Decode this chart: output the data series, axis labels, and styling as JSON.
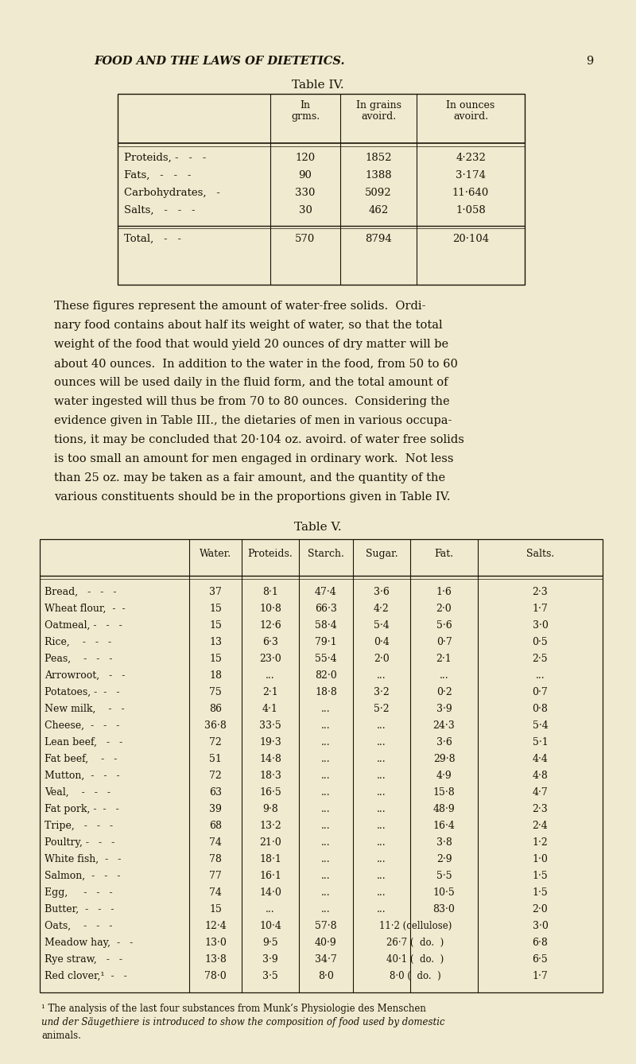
{
  "bg_color": "#f0ead0",
  "text_color": "#1a1408",
  "header_title": "FOOD AND THE LAWS OF DIETETICS.",
  "page_num": "9",
  "table4_title": "Table IV.",
  "table4_headers_line1": [
    "",
    "In",
    "In grains",
    "In ounces"
  ],
  "table4_headers_line2": [
    "",
    "grms.",
    "avoird.",
    "avoird."
  ],
  "table4_rows": [
    [
      "Proteids, -   -   -",
      "120",
      "1852",
      "4·232"
    ],
    [
      "Fats,   -   -   -",
      "90",
      "1388",
      "3·174"
    ],
    [
      "Carbohydrates,   -",
      "330",
      "5092",
      "11·640"
    ],
    [
      "Salts,   -   -   -",
      "30",
      "462",
      "1·058"
    ]
  ],
  "table4_total": [
    "Total,   -   -",
    "570",
    "8794",
    "20·104"
  ],
  "para_lines": [
    "These figures represent the amount of water-free solids.  Ordi-",
    "nary food contains about half its weight of water, so that the total",
    "weight of the food that would yield 20 ounces of dry matter will be",
    "about 40 ounces.  In addition to the water in the food, from 50 to 60",
    "ounces will be used daily in the fluid form, and the total amount of",
    "water ingested will thus be from 70 to 80 ounces.  Considering the",
    "evidence given in Table III., the dietaries of men in various occupa-",
    "tions, it may be concluded that 20·104 oz. avoird. of water free solids",
    "is too small an amount for men engaged in ordinary work.  Not less",
    "than 25 oz. may be taken as a fair amount, and the quantity of the",
    "various constituents should be in the proportions given in Table IV."
  ],
  "table5_title": "Table V.",
  "table5_col_headers": [
    "",
    "Water.",
    "Proteids.",
    "Starch.",
    "Sugar.",
    "Fat.",
    "Salts."
  ],
  "table5_rows": [
    [
      "Bread,   -   -   -",
      "37",
      "8·1",
      "47·4",
      "3·6",
      "1·6",
      "2·3"
    ],
    [
      "Wheat flour,  -  -",
      "15",
      "10·8",
      "66·3",
      "4·2",
      "2·0",
      "1·7"
    ],
    [
      "Oatmeal, -   -   -",
      "15",
      "12·6",
      "58·4",
      "5·4",
      "5·6",
      "3·0"
    ],
    [
      "Rice,    -   -   -",
      "13",
      "6·3",
      "79·1",
      "0·4",
      "0·7",
      "0·5"
    ],
    [
      "Peas,    -   -   -",
      "15",
      "23·0",
      "55·4",
      "2·0",
      "2·1",
      "2·5"
    ],
    [
      "Arrowroot,   -   -",
      "18",
      "...",
      "82·0",
      "...",
      "...",
      "..."
    ],
    [
      "Potatoes, -  -   -",
      "75",
      "2·1",
      "18·8",
      "3·2",
      "0·2",
      "0·7"
    ],
    [
      "New milk,    -   -",
      "86",
      "4·1",
      "...",
      "5·2",
      "3·9",
      "0·8"
    ],
    [
      "Cheese,  -   -   -",
      "36·8",
      "33·5",
      "...",
      "...",
      "24·3",
      "5·4"
    ],
    [
      "Lean beef,   -   -",
      "72",
      "19·3",
      "...",
      "...",
      "3·6",
      "5·1"
    ],
    [
      "Fat beef,    -   -",
      "51",
      "14·8",
      "...",
      "...",
      "29·8",
      "4·4"
    ],
    [
      "Mutton,  -   -   -",
      "72",
      "18·3",
      "...",
      "...",
      "4·9",
      "4·8"
    ],
    [
      "Veal,    -   -   -",
      "63",
      "16·5",
      "...",
      "...",
      "15·8",
      "4·7"
    ],
    [
      "Fat pork, -  -   -",
      "39",
      "9·8",
      "...",
      "...",
      "48·9",
      "2·3"
    ],
    [
      "Tripe,   -   -   -",
      "68",
      "13·2",
      "...",
      "...",
      "16·4",
      "2·4"
    ],
    [
      "Poultry, -   -   -",
      "74",
      "21·0",
      "...",
      "...",
      "3·8",
      "1·2"
    ],
    [
      "White fish,  -   -",
      "78",
      "18·1",
      "...",
      "...",
      "2·9",
      "1·0"
    ],
    [
      "Salmon,  -   -   -",
      "77",
      "16·1",
      "...",
      "...",
      "5·5",
      "1·5"
    ],
    [
      "Egg,     -   -   -",
      "74",
      "14·0",
      "...",
      "...",
      "10·5",
      "1·5"
    ],
    [
      "Butter,  -   -   -",
      "15",
      "...",
      "...",
      "...",
      "83·0",
      "2·0"
    ],
    [
      "Oats,    -   -   -",
      "12·4",
      "10·4",
      "57·8",
      "11·2 (cellulose)",
      "",
      "3·0"
    ],
    [
      "Meadow hay,  -   -",
      "13·0",
      "9·5",
      "40·9",
      "26·7 (  do.  )",
      "",
      "6·8"
    ],
    [
      "Rye straw,   -   -",
      "13·8",
      "3·9",
      "34·7",
      "40·1 (  do.  )",
      "",
      "6·5"
    ],
    [
      "Red clover,¹  -   -",
      "78·0",
      "3·5",
      "8·0",
      "8·0 (  do.  )",
      "",
      "1·7"
    ]
  ],
  "footnote_lines": [
    "¹ The analysis of the last four substances from Munk’s Physiologie des Menschen",
    "und der Säugethiere is introduced to show the composition of food used by domestic",
    "animals."
  ]
}
